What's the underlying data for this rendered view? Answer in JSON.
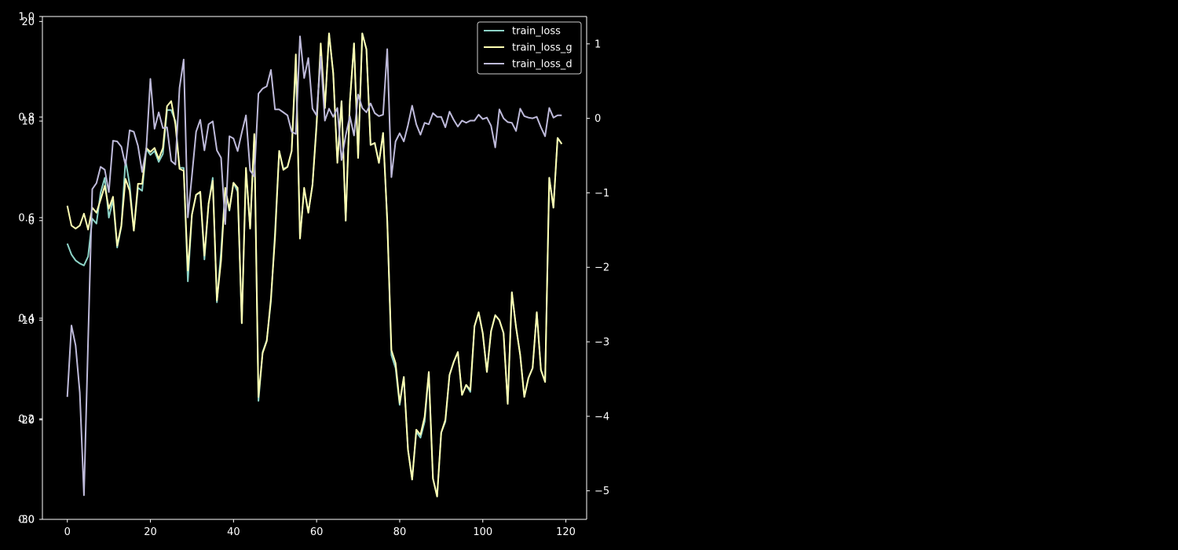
{
  "chart_data": {
    "type": "line",
    "x_axis": {
      "range": [
        -6,
        125
      ],
      "ticks": [
        0,
        20,
        40,
        60,
        80,
        100,
        120
      ]
    },
    "y_axes": {
      "base": {
        "range": [
          0.0,
          1.0
        ],
        "ticks": [
          "0.0",
          "0.2",
          "0.4",
          "0.6",
          "0.8",
          "1.0"
        ]
      },
      "left": {
        "range": [
          -30,
          20.5
        ],
        "ticks": [
          "-30",
          "-20",
          "-10",
          "0",
          "10",
          "20"
        ]
      },
      "right": {
        "range": [
          -5.3833,
          1.3673
        ],
        "ticks": [
          "-5",
          "-4",
          "-3",
          "-2",
          "-1",
          "0",
          "1"
        ]
      }
    },
    "legend": {
      "position": "top-right"
    },
    "series": [
      {
        "name": "train_loss",
        "axis": "left",
        "color": "#8dd3c7",
        "x": [
          0,
          1,
          2,
          3,
          4,
          5,
          6,
          7,
          8,
          9,
          10,
          11,
          12,
          13,
          14,
          15,
          16,
          17,
          18,
          19,
          20,
          21,
          22,
          23,
          24,
          25,
          26,
          27,
          28,
          29,
          30,
          31,
          32,
          33,
          34,
          35,
          36,
          37,
          38,
          39,
          40,
          41,
          42,
          43,
          44,
          45,
          46,
          47,
          48,
          49,
          50,
          51,
          52,
          53,
          54,
          55,
          56,
          57,
          58,
          59,
          60,
          61,
          62,
          63,
          64,
          65,
          66,
          67,
          68,
          69,
          70,
          71,
          72,
          73,
          74,
          75,
          76,
          77,
          78,
          79,
          80,
          81,
          82,
          83,
          84,
          85,
          86,
          87,
          88,
          89,
          90,
          91,
          92,
          93,
          94,
          95,
          96,
          97,
          98,
          99,
          100,
          101,
          102,
          103,
          104,
          105,
          106,
          107,
          108,
          109,
          110,
          111,
          112,
          113,
          114,
          115,
          116,
          117,
          118,
          119
        ],
        "y": [
          -2.3,
          -3.4,
          -4.0,
          -4.3,
          -4.5,
          -3.6,
          0.2,
          -0.3,
          2.8,
          4.3,
          0.3,
          2.1,
          -2.7,
          -0.6,
          6.1,
          3.6,
          -1.0,
          3.3,
          3.0,
          7.2,
          6.6,
          7.0,
          5.9,
          6.7,
          11.1,
          11.1,
          10.0,
          5.3,
          5.3,
          -6.1,
          0.6,
          2.6,
          2.8,
          -3.9,
          1.7,
          4.3,
          -8.2,
          -3.1,
          3.1,
          1.0,
          3.8,
          2.9,
          -10.3,
          5.1,
          -0.8,
          8.6,
          -18.1,
          -13.2,
          -12.0,
          -8.1,
          -1.2,
          7.0,
          5.2,
          5.4,
          7.0,
          16.1,
          -1.8,
          3.2,
          0.8,
          3.6,
          9.8,
          17.3,
          11.3,
          18.8,
          14.8,
          5.9,
          12.0,
          0.0,
          11.9,
          17.8,
          6.3,
          18.8,
          17.2,
          7.6,
          7.8,
          5.8,
          8.8,
          0.0,
          -13.5,
          -14.8,
          -18.5,
          -15.7,
          -23.0,
          -26.0,
          -21.2,
          -21.8,
          -20.2,
          -15.3,
          -25.9,
          -27.7,
          -21.3,
          -20.2,
          -15.5,
          -14.2,
          -13.2,
          -17.5,
          -16.5,
          -17.2,
          -10.6,
          -9.2,
          -11.3,
          -15.2,
          -11.1,
          -9.5,
          -10.0,
          -11.3,
          -18.4,
          -7.2,
          -10.7,
          -13.5,
          -17.7,
          -15.8,
          -14.8,
          -9.2,
          -15.0,
          -16.2,
          4.3,
          1.3,
          8.3,
          7.7
        ]
      },
      {
        "name": "train_loss_g",
        "axis": "left",
        "color": "#ffffb3",
        "x": [
          0,
          1,
          2,
          3,
          4,
          5,
          6,
          7,
          8,
          9,
          10,
          11,
          12,
          13,
          14,
          15,
          16,
          17,
          18,
          19,
          20,
          21,
          22,
          23,
          24,
          25,
          26,
          27,
          28,
          29,
          30,
          31,
          32,
          33,
          34,
          35,
          36,
          37,
          38,
          39,
          40,
          41,
          42,
          43,
          44,
          45,
          46,
          47,
          48,
          49,
          50,
          51,
          52,
          53,
          54,
          55,
          56,
          57,
          58,
          59,
          60,
          61,
          62,
          63,
          64,
          65,
          66,
          67,
          68,
          69,
          70,
          71,
          72,
          73,
          74,
          75,
          76,
          77,
          78,
          79,
          80,
          81,
          82,
          83,
          84,
          85,
          86,
          87,
          88,
          89,
          90,
          91,
          92,
          93,
          94,
          95,
          96,
          97,
          98,
          99,
          100,
          101,
          102,
          103,
          104,
          105,
          106,
          107,
          108,
          109,
          110,
          111,
          112,
          113,
          114,
          115,
          116,
          117,
          118,
          119
        ],
        "y": [
          1.5,
          -0.5,
          -0.8,
          -0.5,
          0.7,
          -0.9,
          1.3,
          0.8,
          2.1,
          3.5,
          1.2,
          2.4,
          -2.5,
          -0.5,
          4.2,
          3.0,
          -1.0,
          3.7,
          3.7,
          7.3,
          6.9,
          7.3,
          6.2,
          7.3,
          11.5,
          12.0,
          9.7,
          5.2,
          5.0,
          -5.0,
          0.6,
          2.6,
          2.9,
          -3.5,
          1.7,
          4.0,
          -8.0,
          -4.0,
          3.3,
          1.1,
          3.8,
          3.3,
          -10.3,
          5.3,
          -0.8,
          8.7,
          -17.7,
          -13.3,
          -12.1,
          -7.8,
          -1.7,
          7.0,
          5.1,
          5.4,
          7.0,
          16.7,
          -1.8,
          3.3,
          0.8,
          3.6,
          9.5,
          17.8,
          11.3,
          18.8,
          14.8,
          5.8,
          12.0,
          0.0,
          11.9,
          17.8,
          6.3,
          18.8,
          17.2,
          7.6,
          7.8,
          5.8,
          8.8,
          0.0,
          -13.0,
          -14.3,
          -18.3,
          -15.7,
          -23.0,
          -26.0,
          -21.0,
          -21.5,
          -19.7,
          -15.2,
          -25.9,
          -27.7,
          -21.3,
          -20.0,
          -15.5,
          -14.2,
          -13.2,
          -17.5,
          -16.5,
          -17.0,
          -10.6,
          -9.2,
          -11.3,
          -15.2,
          -11.1,
          -9.5,
          -10.0,
          -11.3,
          -18.4,
          -7.2,
          -10.7,
          -13.5,
          -17.7,
          -15.8,
          -14.8,
          -9.2,
          -15.0,
          -16.2,
          4.3,
          1.3,
          8.3,
          7.7
        ]
      },
      {
        "name": "train_loss_d",
        "axis": "right",
        "color": "#bebada",
        "x": [
          0,
          1,
          2,
          3,
          4,
          5,
          6,
          7,
          8,
          9,
          10,
          11,
          12,
          13,
          14,
          15,
          16,
          17,
          18,
          19,
          20,
          21,
          22,
          23,
          24,
          25,
          26,
          27,
          28,
          29,
          30,
          31,
          32,
          33,
          34,
          35,
          36,
          37,
          38,
          39,
          40,
          41,
          42,
          43,
          44,
          45,
          46,
          47,
          48,
          49,
          50,
          51,
          52,
          53,
          54,
          55,
          56,
          57,
          58,
          59,
          60,
          61,
          62,
          63,
          64,
          65,
          66,
          67,
          68,
          69,
          70,
          71,
          72,
          73,
          74,
          75,
          76,
          77,
          78,
          79,
          80,
          81,
          82,
          83,
          84,
          85,
          86,
          87,
          88,
          89,
          90,
          91,
          92,
          93,
          94,
          95,
          96,
          97,
          98,
          99,
          100,
          101,
          102,
          103,
          104,
          105,
          106,
          107,
          108,
          109,
          110,
          111,
          112,
          113,
          114,
          115,
          116,
          117,
          118,
          119
        ],
        "y": [
          -3.74,
          -2.78,
          -3.05,
          -3.68,
          -5.06,
          -2.98,
          -0.95,
          -0.87,
          -0.65,
          -0.69,
          -0.99,
          -0.3,
          -0.31,
          -0.38,
          -0.63,
          -0.16,
          -0.18,
          -0.37,
          -0.72,
          -0.41,
          0.53,
          -0.14,
          0.08,
          -0.13,
          -0.12,
          -0.57,
          -0.62,
          0.41,
          0.79,
          -1.33,
          -0.77,
          -0.18,
          -0.02,
          -0.43,
          -0.08,
          -0.04,
          -0.43,
          -0.53,
          -1.42,
          -0.24,
          -0.27,
          -0.44,
          -0.19,
          0.04,
          -0.7,
          -0.78,
          0.33,
          0.4,
          0.43,
          0.65,
          0.12,
          0.12,
          0.08,
          0.04,
          -0.18,
          -0.21,
          1.1,
          0.54,
          0.81,
          0.13,
          0.04,
          0.83,
          -0.03,
          0.13,
          0.02,
          0.14,
          -0.56,
          -0.23,
          0.03,
          -0.23,
          0.32,
          0.14,
          0.08,
          0.2,
          0.07,
          0.03,
          0.05,
          0.93,
          -0.79,
          -0.31,
          -0.2,
          -0.31,
          -0.09,
          0.17,
          -0.08,
          -0.22,
          -0.06,
          -0.08,
          0.07,
          0.02,
          0.02,
          -0.12,
          0.09,
          -0.02,
          -0.11,
          -0.03,
          -0.06,
          -0.03,
          -0.03,
          0.05,
          -0.01,
          0.01,
          -0.1,
          -0.39,
          0.12,
          0.0,
          -0.05,
          -0.06,
          -0.17,
          0.13,
          0.03,
          0.01,
          0.0,
          0.02,
          -0.12,
          -0.24,
          0.14,
          0.01,
          0.04,
          0.04
        ]
      }
    ]
  }
}
